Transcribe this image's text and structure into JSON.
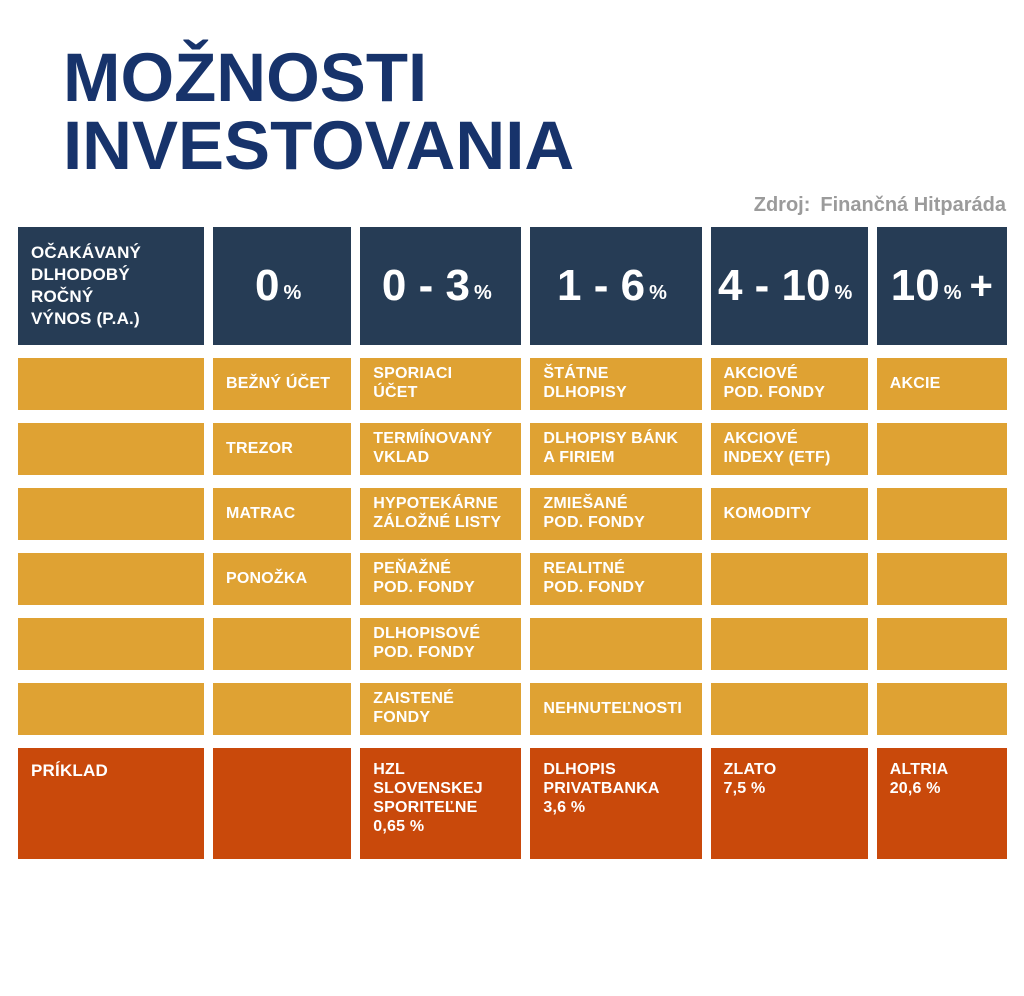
{
  "title": {
    "line1": "MOŽNOSTI",
    "line2": "INVESTOVANIA"
  },
  "source": {
    "label": "Zdroj:",
    "value": "Finančná Hitparáda"
  },
  "colors": {
    "title_navy": "#17336B",
    "header_navy": "#263C55",
    "cell_orange": "#DFA233",
    "example_red": "#C9490B",
    "source_gray": "#9B9B9B"
  },
  "chart_data": {
    "type": "table",
    "title": "MOŽNOSTI INVESTOVANIA",
    "source": "Zdroj: Finančná Hitparáda",
    "header": {
      "label": "OČAKÁVANÝ\nDLHODOBÝ\nROČNÝ\nVÝNOS (P.A.)",
      "ranges": [
        {
          "big": "0",
          "pct": "%",
          "plus": ""
        },
        {
          "big": "0 - 3",
          "pct": "%",
          "plus": ""
        },
        {
          "big": "1 - 6",
          "pct": "%",
          "plus": ""
        },
        {
          "big": "4 - 10",
          "pct": "%",
          "plus": ""
        },
        {
          "big": "10",
          "pct": "%",
          "plus": "+"
        }
      ]
    },
    "rows": [
      [
        "",
        "BEŽNÝ ÚČET",
        "SPORIACI\nÚČET",
        "ŠTÁTNE\nDLHOPISY",
        "AKCIOVÉ\nPOD. FONDY",
        "AKCIE"
      ],
      [
        "",
        "TREZOR",
        "TERMÍNOVANÝ\nVKLAD",
        "DLHOPISY BÁNK\nA FIRIEM",
        "AKCIOVÉ\nINDEXY (ETF)",
        ""
      ],
      [
        "",
        "MATRAC",
        "HYPOTEKÁRNE\nZÁLOŽNÉ LISTY",
        "ZMIEŠANÉ\nPOD. FONDY",
        "KOMODITY",
        ""
      ],
      [
        "",
        "PONOŽKA",
        "PEŇAŽNÉ\nPOD. FONDY",
        "REALITNÉ\nPOD. FONDY",
        "",
        ""
      ],
      [
        "",
        "",
        "DLHOPISOVÉ\nPOD. FONDY",
        "",
        "",
        ""
      ],
      [
        "",
        "",
        "ZAISTENÉ\nFONDY",
        "NEHNUTEĽNOSTI",
        "",
        ""
      ]
    ],
    "example": [
      "PRÍKLAD",
      "",
      "HZL\nSLOVENSKEJ\nSPORITEĽNE\n0,65 %",
      "DLHOPIS\nPRIVATBANKA\n3,6 %",
      "ZLATO\n7,5 %",
      "ALTRIA\n20,6 %"
    ]
  }
}
